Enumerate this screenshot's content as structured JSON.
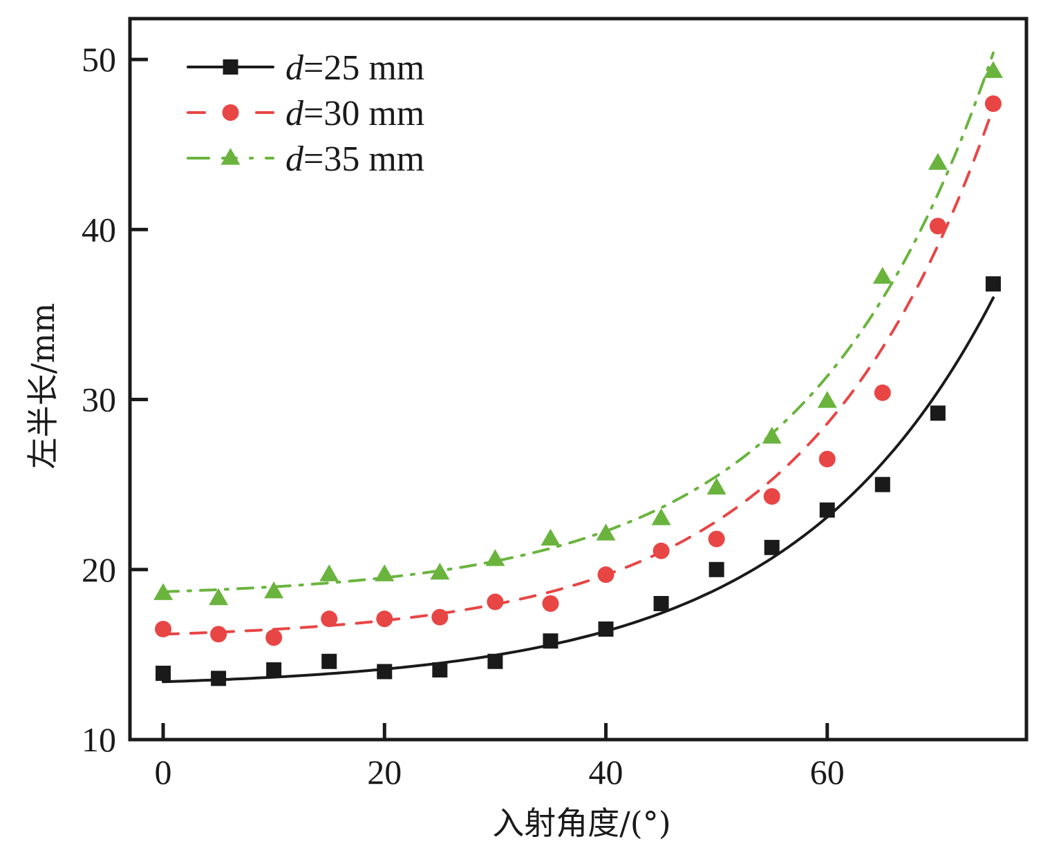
{
  "chart_data": {
    "type": "scatter",
    "title": "",
    "xlabel": "入射角度/(°)",
    "ylabel": "左半长/mm",
    "xlim": [
      -3,
      78
    ],
    "ylim": [
      10,
      52.4
    ],
    "xticks": [
      0,
      20,
      40,
      60
    ],
    "xtick_labels": [
      "0",
      "20",
      "40",
      "60"
    ],
    "yticks": [
      10,
      20,
      30,
      40,
      50
    ],
    "ytick_labels": [
      "10",
      "20",
      "30",
      "40",
      "50"
    ],
    "grid": false,
    "legend_position": "top-left",
    "x": [
      0,
      5,
      10,
      15,
      20,
      25,
      30,
      35,
      40,
      45,
      50,
      55,
      60,
      65,
      70,
      75
    ],
    "series": [
      {
        "name": "d=25 mm",
        "legend_var": "d",
        "legend_rest": "=25 mm",
        "color": "#1a1a1a",
        "marker": "square",
        "line_style": "solid",
        "values": [
          13.9,
          13.6,
          14.1,
          14.6,
          14.0,
          14.1,
          14.6,
          15.8,
          16.5,
          18.0,
          20.0,
          21.3,
          23.5,
          25.0,
          29.2,
          36.8
        ],
        "fit": {
          "model": "a + b*exp(c*x)",
          "a": 13.03,
          "b": 0.371,
          "c": 0.055,
          "x_range": [
            0,
            75
          ]
        }
      },
      {
        "name": "d=30 mm",
        "legend_var": "d",
        "legend_rest": "=30 mm",
        "color": "#e84545",
        "marker": "circle",
        "line_style": "dashed",
        "values": [
          16.5,
          16.2,
          16.0,
          17.1,
          17.1,
          17.2,
          18.1,
          18.0,
          19.7,
          21.1,
          21.8,
          24.3,
          26.5,
          30.4,
          40.2,
          47.4
        ],
        "fit": {
          "model": "a + b*exp(c*x)",
          "a": 15.85,
          "b": 0.348,
          "c": 0.06,
          "x_range": [
            0,
            75
          ]
        }
      },
      {
        "name": "d=35 mm",
        "legend_var": "d",
        "legend_rest": "=35 mm",
        "color": "#6ab43e",
        "marker": "triangle",
        "line_style": "dash-dot",
        "values": [
          18.6,
          18.3,
          18.7,
          19.7,
          19.7,
          19.8,
          20.6,
          21.8,
          22.1,
          23.0,
          24.8,
          27.8,
          29.9,
          37.2,
          43.9,
          49.3
        ],
        "fit": {
          "model": "a + b*exp(c*x)",
          "a": 18.34,
          "b": 0.356,
          "c": 0.06,
          "x_range": [
            0,
            75
          ]
        }
      }
    ]
  }
}
